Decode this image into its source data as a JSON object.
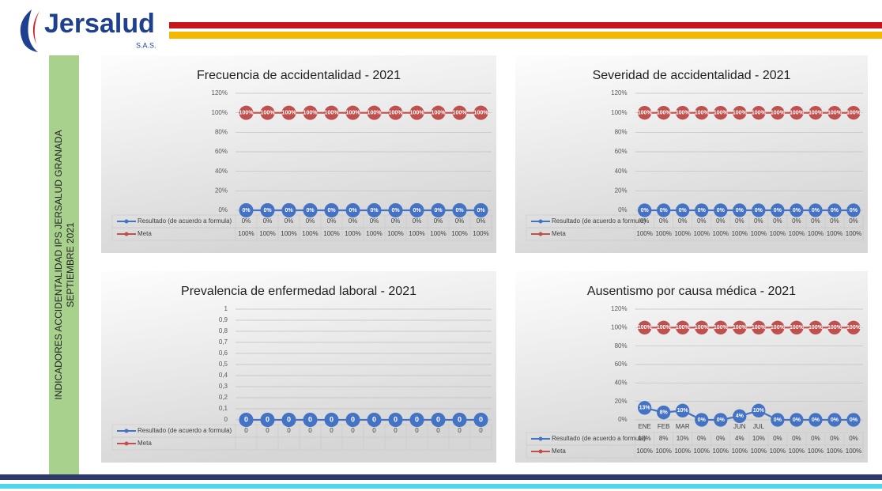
{
  "logo": {
    "name": "Jersalud",
    "suffix": "S.A.S."
  },
  "side_label": {
    "line1": "INDICADORES ACCIDENTALIDAD IPS JERSALUD GRANADA",
    "line2": "SEPTIEMBRE 2021"
  },
  "chart_data": [
    {
      "type": "line",
      "title": "Frecuencia de accidentalidad -  2021",
      "categories": [
        null,
        null,
        null,
        null,
        null,
        null,
        null,
        null,
        null,
        null,
        null,
        null
      ],
      "series": [
        {
          "name": "Resultado (de acuerdo a formula)",
          "color": "#4472c4",
          "values": [
            0,
            0,
            0,
            0,
            0,
            0,
            0,
            0,
            0,
            0,
            0,
            0
          ],
          "value_labels": [
            "0%",
            "0%",
            "0%",
            "0%",
            "0%",
            "0%",
            "0%",
            "0%",
            "0%",
            "0%",
            "0%",
            "0%"
          ]
        },
        {
          "name": "Meta",
          "color": "#c0504d",
          "values": [
            100,
            100,
            100,
            100,
            100,
            100,
            100,
            100,
            100,
            100,
            100,
            100
          ],
          "value_labels": [
            "100%",
            "100%",
            "100%",
            "100%",
            "100%",
            "100%",
            "100%",
            "100%",
            "100%",
            "100%",
            "100%",
            "100%"
          ]
        }
      ],
      "ylim": [
        0,
        120
      ],
      "yticks": [
        {
          "value": 0,
          "label": "0%"
        },
        {
          "value": 20,
          "label": "20%"
        },
        {
          "value": 40,
          "label": "40%"
        },
        {
          "value": 60,
          "label": "60%"
        },
        {
          "value": 80,
          "label": "80%"
        },
        {
          "value": 100,
          "label": "100%"
        },
        {
          "value": 120,
          "label": "120%"
        }
      ],
      "grid": true
    },
    {
      "type": "line",
      "title": "Severidad de accidentalidad -  2021",
      "categories": [
        null,
        null,
        null,
        null,
        null,
        null,
        null,
        null,
        null,
        null,
        null,
        null
      ],
      "series": [
        {
          "name": "Resultado (de acuerdo a formula)",
          "color": "#4472c4",
          "values": [
            0,
            0,
            0,
            0,
            0,
            0,
            0,
            0,
            0,
            0,
            0,
            0
          ],
          "value_labels": [
            "0%",
            "0%",
            "0%",
            "0%",
            "0%",
            "0%",
            "0%",
            "0%",
            "0%",
            "0%",
            "0%",
            "0%"
          ]
        },
        {
          "name": "Meta",
          "color": "#c0504d",
          "values": [
            100,
            100,
            100,
            100,
            100,
            100,
            100,
            100,
            100,
            100,
            100,
            100
          ],
          "value_labels": [
            "100%",
            "100%",
            "100%",
            "100%",
            "100%",
            "100%",
            "100%",
            "100%",
            "100%",
            "100%",
            "100%",
            "100%"
          ]
        }
      ],
      "ylim": [
        0,
        120
      ],
      "yticks": [
        {
          "value": 0,
          "label": "0%"
        },
        {
          "value": 20,
          "label": "20%"
        },
        {
          "value": 40,
          "label": "40%"
        },
        {
          "value": 60,
          "label": "60%"
        },
        {
          "value": 80,
          "label": "80%"
        },
        {
          "value": 100,
          "label": "100%"
        },
        {
          "value": 120,
          "label": "120%"
        }
      ],
      "grid": true
    },
    {
      "type": "line",
      "title": "Prevalencia de enfermedad laboral  - 2021",
      "categories": [
        null,
        null,
        null,
        null,
        null,
        null,
        null,
        null,
        null,
        null,
        null,
        null
      ],
      "series": [
        {
          "name": "Resultado (de acuerdo a formula)",
          "color": "#4472c4",
          "values": [
            0,
            0,
            0,
            0,
            0,
            0,
            0,
            0,
            0,
            0,
            0,
            0
          ]
        },
        {
          "name": "Meta",
          "color": "#c0504d",
          "values": [
            null,
            null,
            null,
            null,
            null,
            null,
            null,
            null,
            null,
            null,
            null,
            null
          ]
        }
      ],
      "ylim": [
        0,
        1
      ],
      "yticks": [
        0,
        {
          "value": 0.1,
          "label": "0,1"
        },
        {
          "value": 0.2,
          "label": "0,2"
        },
        {
          "value": 0.3,
          "label": "0,3"
        },
        {
          "value": 0.4,
          "label": "0,4"
        },
        {
          "value": 0.5,
          "label": "0,5"
        },
        {
          "value": 0.6,
          "label": "0,6"
        },
        {
          "value": 0.7,
          "label": "0,7"
        },
        {
          "value": 0.8,
          "label": "0,8"
        },
        {
          "value": 0.9,
          "label": "0,9"
        },
        1
      ],
      "grid": true
    },
    {
      "type": "line",
      "title": "Ausentismo por causa médica -  2021",
      "categories": [
        "ENE",
        "FEB",
        "MAR",
        null,
        null,
        "JUN",
        "JUL",
        null,
        null,
        null,
        null,
        null
      ],
      "series": [
        {
          "name": "Resultado (de acuerdo a formula)",
          "color": "#4472c4",
          "values": [
            13,
            8,
            10,
            0,
            0,
            4,
            10,
            0,
            0,
            0,
            0,
            0
          ],
          "value_labels": [
            "13%",
            "8%",
            "10%",
            "0%",
            "0%",
            "4%",
            "10%",
            "0%",
            "0%",
            "0%",
            "0%",
            "0%"
          ]
        },
        {
          "name": "Meta",
          "color": "#c0504d",
          "values": [
            100,
            100,
            100,
            100,
            100,
            100,
            100,
            100,
            100,
            100,
            100,
            100
          ],
          "value_labels": [
            "100%",
            "100%",
            "100%",
            "100%",
            "100%",
            "100%",
            "100%",
            "100%",
            "100%",
            "100%",
            "100%",
            "100%"
          ]
        }
      ],
      "ylim": [
        0,
        120
      ],
      "yticks": [
        {
          "value": 0,
          "label": "0%"
        },
        {
          "value": 20,
          "label": "20%"
        },
        {
          "value": 40,
          "label": "40%"
        },
        {
          "value": 60,
          "label": "60%"
        },
        {
          "value": 80,
          "label": "80%"
        },
        {
          "value": 100,
          "label": "100%"
        },
        {
          "value": 120,
          "label": "120%"
        }
      ],
      "grid": true
    }
  ]
}
